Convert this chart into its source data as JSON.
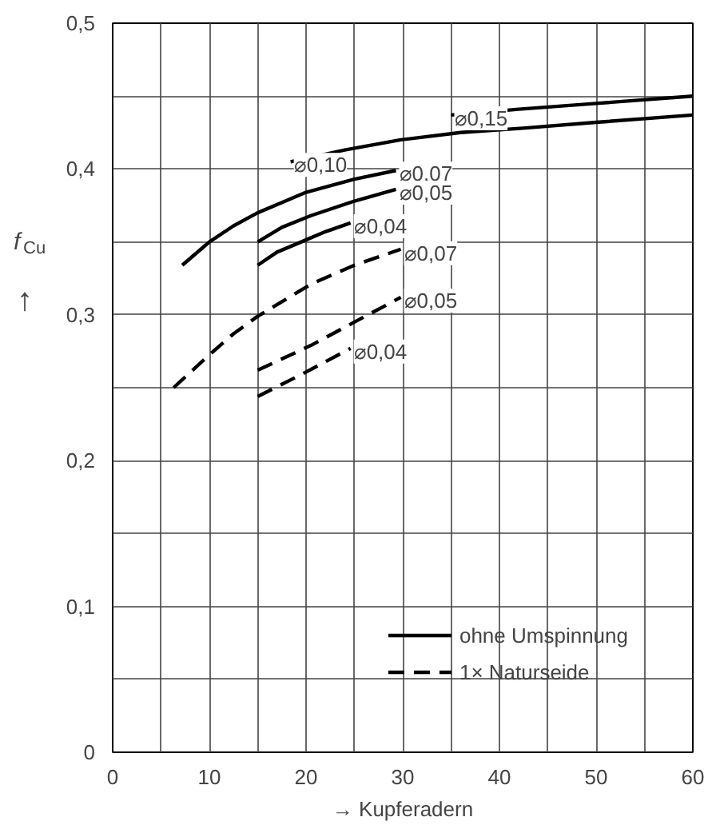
{
  "chart_data": {
    "type": "line",
    "xlabel": "→ Kupferadern",
    "ylabel": "f$_{Cu}$ ↑",
    "xlim": [
      0,
      60
    ],
    "ylim": [
      0,
      0.5
    ],
    "xticks": [
      0,
      {
        "value": 5,
        "label": null
      },
      10,
      {
        "value": 15,
        "label": null
      },
      20,
      {
        "value": 25,
        "label": null
      },
      30,
      {
        "value": 35,
        "label": null
      },
      40,
      {
        "value": 45,
        "label": null
      },
      50,
      {
        "value": 55,
        "label": null
      },
      60
    ],
    "yticks": [
      0,
      {
        "value": 0.05,
        "label": null
      },
      {
        "value": 0.1,
        "label": "0,1"
      },
      {
        "value": 0.15,
        "label": null
      },
      {
        "value": 0.2,
        "label": "0,2"
      },
      {
        "value": 0.25,
        "label": null
      },
      {
        "value": 0.3,
        "label": "0,3"
      },
      {
        "value": 0.35,
        "label": null
      },
      {
        "value": 0.4,
        "label": "0,4"
      },
      {
        "value": 0.45,
        "label": null
      },
      {
        "value": 0.5,
        "label": "0,5"
      }
    ],
    "grid": true,
    "legend": "bottom right",
    "marker": "none",
    "series": [
      {
        "name": "ohne Umspinnung",
        "color": "#000000",
        "line_style": "solid",
        "x": [
          35,
          42,
          50,
          60
        ],
        "values": [
          0.437,
          0.441,
          0.445,
          0.45
        ]
      },
      {
        "color": "#000000",
        "line_style": "solid",
        "x": [
          18.4,
          24,
          29.8,
          36,
          42.4,
          50,
          60
        ],
        "values": [
          0.405,
          0.413,
          0.42,
          0.425,
          0.428,
          0.432,
          0.437
        ]
      },
      {
        "color": "#000000",
        "line_style": "solid",
        "x": [
          7.2,
          10,
          12.5,
          15,
          20,
          25,
          29.3
        ],
        "values": [
          0.334,
          0.35,
          0.361,
          0.37,
          0.384,
          0.393,
          0.399
        ]
      },
      {
        "color": "#000000",
        "line_style": "solid",
        "x": [
          15,
          17.5,
          20.5,
          25,
          29.3
        ],
        "values": [
          0.35,
          0.36,
          0.368,
          0.378,
          0.386
        ]
      },
      {
        "color": "#000000",
        "line_style": "solid",
        "x": [
          15,
          17,
          19.5,
          22,
          24.6
        ],
        "values": [
          0.334,
          0.343,
          0.35,
          0.357,
          0.363
        ]
      },
      {
        "name": "1× Naturseide",
        "color": "#000000",
        "line_style": "dashed",
        "x": [
          6.3,
          9.9,
          12.5,
          15,
          20.5,
          25,
          29.8
        ],
        "values": [
          0.25,
          0.272,
          0.287,
          0.299,
          0.321,
          0.334,
          0.345
        ]
      },
      {
        "color": "#000000",
        "line_style": "dashed",
        "x": [
          15,
          20.5,
          25,
          29.8
        ],
        "values": [
          0.262,
          0.279,
          0.295,
          0.312
        ]
      },
      {
        "color": "#000000",
        "line_style": "dashed",
        "x": [
          15,
          19.5,
          24.6
        ],
        "values": [
          0.244,
          0.259,
          0.277
        ]
      }
    ],
    "annotations": [
      {
        "text": "⌀0,15",
        "x": 35,
        "y": 0.437
      },
      {
        "text": "⌀0,10",
        "x": 18.4,
        "y": 0.405
      },
      {
        "text": "⌀0,07",
        "x": 29.3,
        "y": 0.399
      },
      {
        "text": "⌀0,05",
        "x": 29.3,
        "y": 0.386
      },
      {
        "text": "⌀0,04",
        "x": 24.6,
        "y": 0.363
      },
      {
        "text": "⌀0,07",
        "x": 29.8,
        "y": 0.3445
      },
      {
        "text": "⌀0,05",
        "x": 29.8,
        "y": 0.312
      },
      {
        "text": "⌀0,04",
        "x": 24.6,
        "y": 0.277
      }
    ]
  }
}
